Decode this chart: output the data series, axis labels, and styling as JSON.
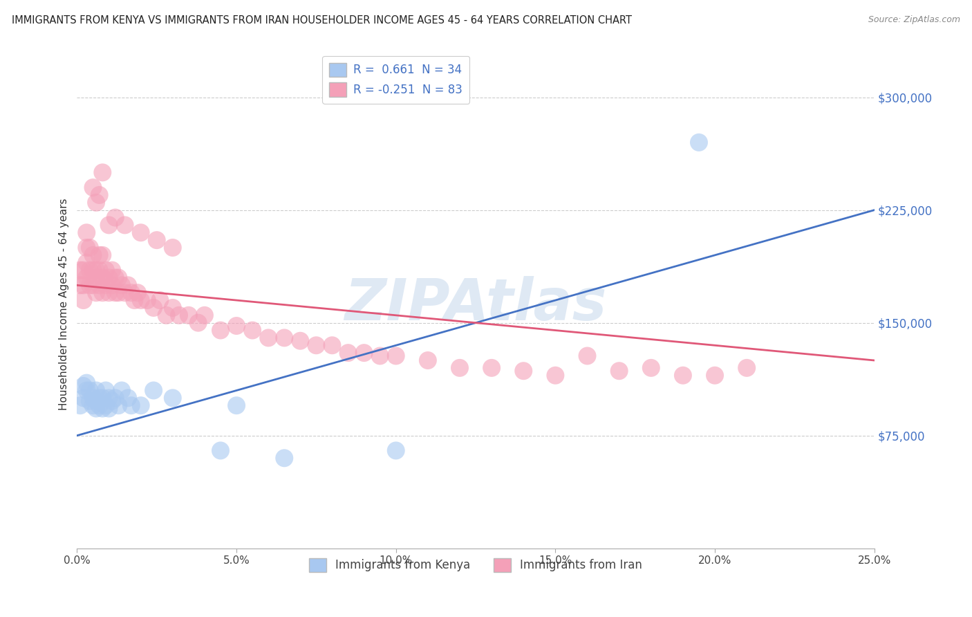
{
  "title": "IMMIGRANTS FROM KENYA VS IMMIGRANTS FROM IRAN HOUSEHOLDER INCOME AGES 45 - 64 YEARS CORRELATION CHART",
  "source": "Source: ZipAtlas.com",
  "ylabel": "Householder Income Ages 45 - 64 years",
  "xlim": [
    0.0,
    0.25
  ],
  "ylim": [
    0,
    325000
  ],
  "yticks": [
    0,
    75000,
    150000,
    225000,
    300000
  ],
  "ytick_labels": [
    "",
    "$75,000",
    "$150,000",
    "$225,000",
    "$300,000"
  ],
  "xticks": [
    0.0,
    0.05,
    0.1,
    0.15,
    0.2,
    0.25
  ],
  "xtick_labels": [
    "0.0%",
    "5.0%",
    "10.0%",
    "15.0%",
    "20.0%",
    "25.0%"
  ],
  "kenya_color": "#a8c8f0",
  "iran_color": "#f4a0b8",
  "kenya_line_color": "#4472c4",
  "iran_line_color": "#e05878",
  "kenya_R": 0.661,
  "kenya_N": 34,
  "iran_R": -0.251,
  "iran_N": 83,
  "background_color": "#ffffff",
  "grid_color": "#cccccc",
  "watermark": "ZIPAtlas",
  "kenya_scatter_x": [
    0.001,
    0.002,
    0.002,
    0.003,
    0.003,
    0.004,
    0.004,
    0.005,
    0.005,
    0.006,
    0.006,
    0.006,
    0.007,
    0.007,
    0.008,
    0.008,
    0.009,
    0.009,
    0.01,
    0.01,
    0.011,
    0.012,
    0.013,
    0.014,
    0.016,
    0.017,
    0.02,
    0.024,
    0.03,
    0.045,
    0.05,
    0.065,
    0.1,
    0.195
  ],
  "kenya_scatter_y": [
    95000,
    100000,
    108000,
    105000,
    110000,
    98000,
    105000,
    95000,
    100000,
    93000,
    98000,
    105000,
    95000,
    100000,
    93000,
    100000,
    95000,
    105000,
    93000,
    100000,
    98000,
    100000,
    95000,
    105000,
    100000,
    95000,
    95000,
    105000,
    100000,
    65000,
    95000,
    60000,
    65000,
    270000
  ],
  "iran_scatter_x": [
    0.001,
    0.001,
    0.002,
    0.002,
    0.002,
    0.003,
    0.003,
    0.003,
    0.003,
    0.004,
    0.004,
    0.004,
    0.005,
    0.005,
    0.005,
    0.006,
    0.006,
    0.006,
    0.007,
    0.007,
    0.007,
    0.008,
    0.008,
    0.008,
    0.009,
    0.009,
    0.01,
    0.01,
    0.011,
    0.011,
    0.012,
    0.012,
    0.013,
    0.013,
    0.014,
    0.015,
    0.016,
    0.017,
    0.018,
    0.019,
    0.02,
    0.022,
    0.024,
    0.026,
    0.028,
    0.03,
    0.032,
    0.035,
    0.038,
    0.04,
    0.045,
    0.05,
    0.055,
    0.06,
    0.065,
    0.07,
    0.075,
    0.08,
    0.085,
    0.09,
    0.095,
    0.1,
    0.11,
    0.12,
    0.13,
    0.14,
    0.15,
    0.16,
    0.17,
    0.18,
    0.19,
    0.2,
    0.21,
    0.015,
    0.02,
    0.025,
    0.03,
    0.005,
    0.006,
    0.007,
    0.008,
    0.01,
    0.012
  ],
  "iran_scatter_y": [
    175000,
    185000,
    165000,
    175000,
    185000,
    180000,
    190000,
    200000,
    210000,
    175000,
    185000,
    200000,
    175000,
    185000,
    195000,
    170000,
    180000,
    185000,
    175000,
    185000,
    195000,
    170000,
    180000,
    195000,
    175000,
    185000,
    170000,
    180000,
    175000,
    185000,
    170000,
    180000,
    170000,
    180000,
    175000,
    170000,
    175000,
    170000,
    165000,
    170000,
    165000,
    165000,
    160000,
    165000,
    155000,
    160000,
    155000,
    155000,
    150000,
    155000,
    145000,
    148000,
    145000,
    140000,
    140000,
    138000,
    135000,
    135000,
    130000,
    130000,
    128000,
    128000,
    125000,
    120000,
    120000,
    118000,
    115000,
    128000,
    118000,
    120000,
    115000,
    115000,
    120000,
    215000,
    210000,
    205000,
    200000,
    240000,
    230000,
    235000,
    250000,
    215000,
    220000
  ]
}
